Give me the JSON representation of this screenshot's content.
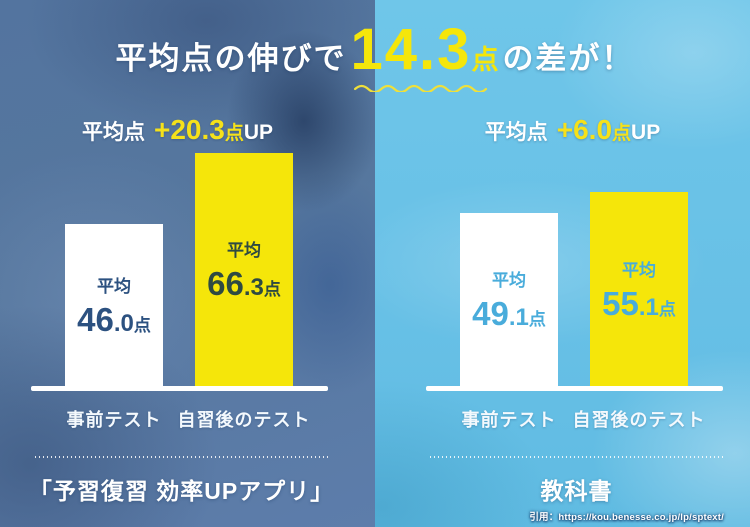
{
  "title": {
    "prefix": "平均点の伸びで",
    "highlight": "14.3",
    "highlight_unit": "点",
    "suffix": "の差が！"
  },
  "panels": [
    {
      "id": "app",
      "header": {
        "label": "平均点",
        "delta": "+20.3",
        "unit": "点",
        "suffix": "UP"
      },
      "bars": [
        {
          "label": "平均",
          "value": 46.0,
          "int": "46",
          "dec": ".0",
          "unit": "点",
          "axis": "事前テスト"
        },
        {
          "label": "平均",
          "value": 66.3,
          "int": "66",
          "dec": ".3",
          "unit": "点",
          "axis": "自習後のテスト"
        }
      ],
      "footer": "「予習復習 効率UPアプリ」"
    },
    {
      "id": "textbook",
      "header": {
        "label": "平均点",
        "delta": "+6.0",
        "unit": "点",
        "suffix": "UP"
      },
      "bars": [
        {
          "label": "平均",
          "value": 49.1,
          "int": "49",
          "dec": ".1",
          "unit": "点",
          "axis": "事前テスト"
        },
        {
          "label": "平均",
          "value": 55.1,
          "int": "55",
          "dec": ".1",
          "unit": "点",
          "axis": "自習後のテスト"
        }
      ],
      "footer": "教科書"
    }
  ],
  "citation": "引用：https://kou.benesse.co.jp/lp/sptext/",
  "colors": {
    "accent_yellow": "#f5e60a",
    "left_background_blue": "#56779e",
    "right_background_cyan": "#67c0e6",
    "app_text_on_white_bar": "#2c5180",
    "app_text_on_yellow_bar": "#2e4a42",
    "textbook_bar_text": "#49acdb",
    "text_white": "#ffffff"
  },
  "chart_data": [
    {
      "type": "bar",
      "title": "「予習復習 効率UPアプリ」",
      "categories": [
        "事前テスト",
        "自習後のテスト"
      ],
      "values": [
        46.0,
        66.3
      ],
      "bar_colors": [
        "#ffffff",
        "#f5e60a"
      ],
      "data_labels": [
        "平均 46.0点",
        "平均 66.3点"
      ],
      "annotation": "平均点 +20.3点UP",
      "xlabel": "",
      "ylabel": "",
      "ylim": [
        0,
        75
      ],
      "grid": false,
      "legend": "none"
    },
    {
      "type": "bar",
      "title": "教科書",
      "categories": [
        "事前テスト",
        "自習後のテスト"
      ],
      "values": [
        49.1,
        55.1
      ],
      "bar_colors": [
        "#ffffff",
        "#f5e60a"
      ],
      "data_labels": [
        "平均 49.1点",
        "平均 55.1点"
      ],
      "annotation": "平均点 +6.0点UP",
      "xlabel": "",
      "ylabel": "",
      "ylim": [
        0,
        75
      ],
      "grid": false,
      "legend": "none"
    }
  ],
  "overall": {
    "headline": "平均点の伸びで14.3点の差が！",
    "difference_points": 14.3
  }
}
